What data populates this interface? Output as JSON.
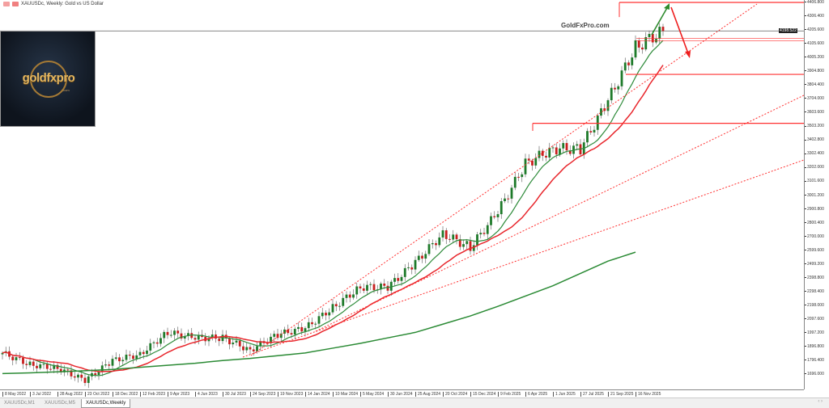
{
  "window": {
    "title": "XAUUSDc, Weekly:  Gold vs US Dollar",
    "watermark": "GoldFxPro.com"
  },
  "logo": {
    "text": "goldfxpro",
    "suffix": ".com"
  },
  "tabs": [
    {
      "label": "XAUUSDc,M1"
    },
    {
      "label": "XAUUSDc,M5"
    },
    {
      "label": "XAUUSDc,Weekly",
      "active": true
    }
  ],
  "chart_data": {
    "type": "candlestick",
    "symbol": "XAUUSDc",
    "timeframe": "Weekly",
    "current_price": "4198.522",
    "ylim": [
      1696.0,
      4406.8
    ],
    "y_ticks": [
      "4406.800",
      "4306.400",
      "4205.600",
      "4105.600",
      "4005.200",
      "3904.800",
      "3804.400",
      "3704.000",
      "3603.600",
      "3503.200",
      "3402.800",
      "3302.400",
      "3202.000",
      "3101.600",
      "3001.200",
      "2900.800",
      "2800.400",
      "2700.000",
      "2599.600",
      "2499.200",
      "2398.800",
      "2298.400",
      "2198.000",
      "2097.600",
      "1997.200",
      "1896.800",
      "1796.400",
      "1696.000"
    ],
    "x_ticks": [
      "8 May 2022",
      "3 Jul 2022",
      "28 Aug 2022",
      "23 Oct 2022",
      "18 Dec 2022",
      "12 Feb 2023",
      "9 Apr 2023",
      "4 Jun 2023",
      "30 Jul 2023",
      "24 Sep 2023",
      "19 Nov 2023",
      "14 Jan 2024",
      "10 Mar 2024",
      "5 May 2024",
      "30 Jun 2024",
      "25 Aug 2024",
      "20 Oct 2024",
      "15 Dec 2024",
      "9 Feb 2025",
      "6 Apr 2025",
      "1 Jun 2025",
      "27 Jul 2025",
      "21 Sep 2025",
      "16 Nov 2025"
    ],
    "approx_closes": [
      1850,
      1765,
      1740,
      1650,
      1795,
      1840,
      2000,
      1960,
      1960,
      1870,
      1985,
      2030,
      2180,
      2330,
      2330,
      2510,
      2720,
      2620,
      2880,
      3230,
      3340,
      3340,
      3690,
      4080,
      4198.5
    ],
    "long_ma": [
      1700,
      1705,
      1712,
      1720,
      1730,
      1745,
      1760,
      1775,
      1795,
      1810,
      1830,
      1850,
      1885,
      1920,
      1960,
      2000,
      2060,
      2120,
      2190,
      2265,
      2340,
      2430,
      2520,
      2585
    ],
    "levels": [
      4406.8,
      4145,
      4128,
      3882,
      3525
    ],
    "colors": {
      "bull": "#1e7a2a",
      "bear": "#c81e1e",
      "fast_ma": "#2e8b3a",
      "slow_ma": "#e8262c",
      "long_ma": "#2a8a34",
      "levels": "#ff3030",
      "arrow_up": "#2e8b2e",
      "arrow_down": "#ee1c1c"
    }
  }
}
